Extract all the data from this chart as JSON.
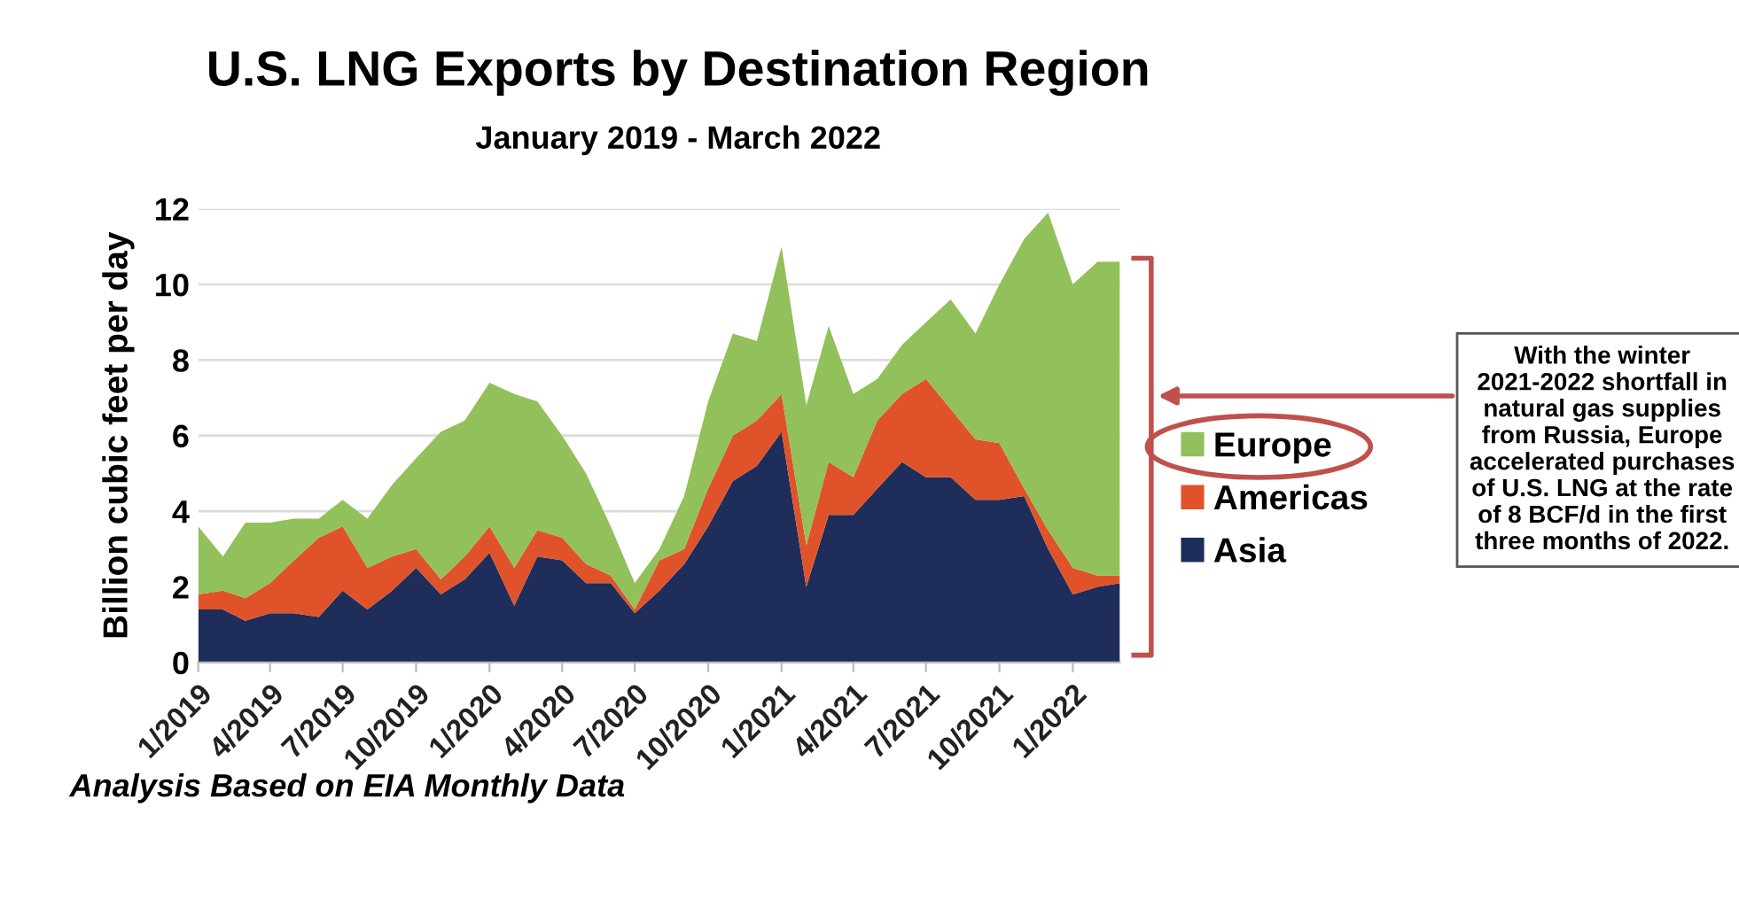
{
  "chart_data": {
    "type": "area",
    "stacked": true,
    "title": "U.S. LNG Exports by Destination Region",
    "subtitle": "January 2019 - March 2022",
    "ylabel": "Billion cubic feet per day",
    "x": [
      "2019-01",
      "2019-02",
      "2019-03",
      "2019-04",
      "2019-05",
      "2019-06",
      "2019-07",
      "2019-08",
      "2019-09",
      "2019-10",
      "2019-11",
      "2019-12",
      "2020-01",
      "2020-02",
      "2020-03",
      "2020-04",
      "2020-05",
      "2020-06",
      "2020-07",
      "2020-08",
      "2020-09",
      "2020-10",
      "2020-11",
      "2020-12",
      "2021-01",
      "2021-02",
      "2021-03",
      "2021-04",
      "2021-05",
      "2021-06",
      "2021-07",
      "2021-08",
      "2021-09",
      "2021-10",
      "2021-11",
      "2021-12",
      "2022-01",
      "2022-02",
      "2022-03"
    ],
    "series": [
      {
        "name": "Asia",
        "color": "#1f2d5a",
        "values": [
          1.4,
          1.4,
          1.1,
          1.3,
          1.3,
          1.2,
          1.9,
          1.4,
          1.9,
          2.5,
          1.8,
          2.2,
          2.9,
          1.5,
          2.8,
          2.7,
          2.1,
          2.1,
          1.3,
          1.9,
          2.6,
          3.6,
          4.8,
          5.2,
          6.1,
          2.0,
          3.9,
          3.9,
          4.6,
          5.3,
          4.9,
          4.9,
          4.3,
          4.3,
          4.4,
          3.0,
          1.8,
          2.0,
          2.1
        ]
      },
      {
        "name": "Americas",
        "color": "#e0532a",
        "values": [
          0.4,
          0.5,
          0.6,
          0.8,
          1.4,
          2.1,
          1.7,
          1.1,
          0.9,
          0.5,
          0.4,
          0.6,
          0.7,
          1.0,
          0.7,
          0.6,
          0.5,
          0.2,
          0.1,
          0.8,
          0.4,
          1.0,
          1.2,
          1.2,
          1.0,
          1.1,
          1.4,
          1.0,
          1.8,
          1.8,
          2.6,
          1.8,
          1.6,
          1.5,
          0.2,
          0.5,
          0.7,
          0.3,
          0.2
        ]
      },
      {
        "name": "Europe",
        "color": "#92c05a",
        "values": [
          1.8,
          0.9,
          2.0,
          1.6,
          1.1,
          0.5,
          0.7,
          1.3,
          1.9,
          2.4,
          3.9,
          3.6,
          3.8,
          4.6,
          3.4,
          2.7,
          2.4,
          1.3,
          0.7,
          0.3,
          1.4,
          2.3,
          2.7,
          2.1,
          3.9,
          3.7,
          3.6,
          2.2,
          1.1,
          1.3,
          1.5,
          2.9,
          2.8,
          4.2,
          6.6,
          8.4,
          7.5,
          8.3,
          8.3
        ]
      }
    ],
    "xlim": [
      "2019-01",
      "2022-03"
    ],
    "xticks": [
      {
        "value": "2019-01",
        "label": "1/2019"
      },
      {
        "value": "2019-04",
        "label": "4/2019"
      },
      {
        "value": "2019-07",
        "label": "7/2019"
      },
      {
        "value": "2019-10",
        "label": "10/2019"
      },
      {
        "value": "2020-01",
        "label": "1/2020"
      },
      {
        "value": "2020-04",
        "label": "4/2020"
      },
      {
        "value": "2020-07",
        "label": "7/2020"
      },
      {
        "value": "2020-10",
        "label": "10/2020"
      },
      {
        "value": "2021-01",
        "label": "1/2021"
      },
      {
        "value": "2021-04",
        "label": "4/2021"
      },
      {
        "value": "2021-07",
        "label": "7/2021"
      },
      {
        "value": "2021-10",
        "label": "10/2021"
      },
      {
        "value": "2022-01",
        "label": "1/2022"
      }
    ],
    "ylim": [
      0,
      12
    ],
    "yticks": [
      0,
      2,
      4,
      6,
      8,
      10,
      12
    ],
    "grid": "y",
    "legend": "right",
    "annotations": [
      "With the winter 2021-2022 shortfall in natural gas supplies from Russia, Europe accelerated purchases of U.S. LNG at the rate of 8 BCF/d in the first three months of 2022.",
      "Analysis Based on EIA Monthly Data"
    ]
  }
}
